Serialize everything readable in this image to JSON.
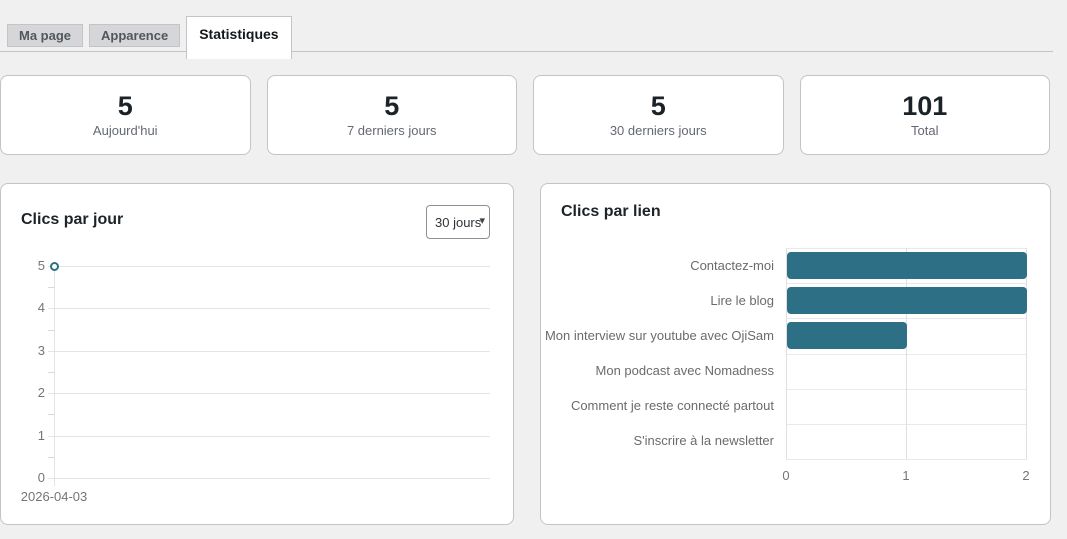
{
  "tabs": {
    "items": [
      {
        "label": "Ma page",
        "active": false
      },
      {
        "label": "Apparence",
        "active": false
      },
      {
        "label": "Statistiques",
        "active": true
      }
    ]
  },
  "stats": {
    "cards": [
      {
        "value": "5",
        "label": "Aujourd'hui"
      },
      {
        "value": "5",
        "label": "7 derniers jours"
      },
      {
        "value": "5",
        "label": "30 derniers jours"
      },
      {
        "value": "101",
        "label": "Total"
      }
    ]
  },
  "clics_par_jour": {
    "title": "Clics par jour",
    "range_select": {
      "value": "30 jours",
      "icon": "caret-down-icon"
    },
    "x_label": "2026-04-03"
  },
  "clics_par_lien": {
    "title": "Clics par lien"
  },
  "colors": {
    "accent_teal": "#2d7086",
    "card_border": "#c3c4c7",
    "page_bg": "#f0f0f1"
  },
  "chart_data": [
    {
      "type": "line",
      "title": "Clics par jour",
      "x": [
        "2026-04-03"
      ],
      "series": [
        {
          "name": "Clics",
          "values": [
            5
          ]
        }
      ],
      "ylim": [
        0,
        5
      ],
      "yticks": [
        5,
        4,
        3,
        2,
        1,
        0
      ],
      "grid": true,
      "marker": "circle",
      "legend": "none"
    },
    {
      "type": "bar",
      "title": "Clics par lien",
      "orientation": "horizontal",
      "categories": [
        "Contactez-moi",
        "Lire le blog",
        "Mon interview sur youtube avec OjiSam",
        "Mon podcast avec Nomadness",
        "Comment je reste connecté partout",
        "S'inscrire à la newsletter"
      ],
      "values": [
        2,
        2,
        1,
        0,
        0,
        0
      ],
      "xlim": [
        0,
        2
      ],
      "xticks": [
        0,
        1,
        2
      ],
      "grid": true,
      "legend": "none"
    }
  ]
}
